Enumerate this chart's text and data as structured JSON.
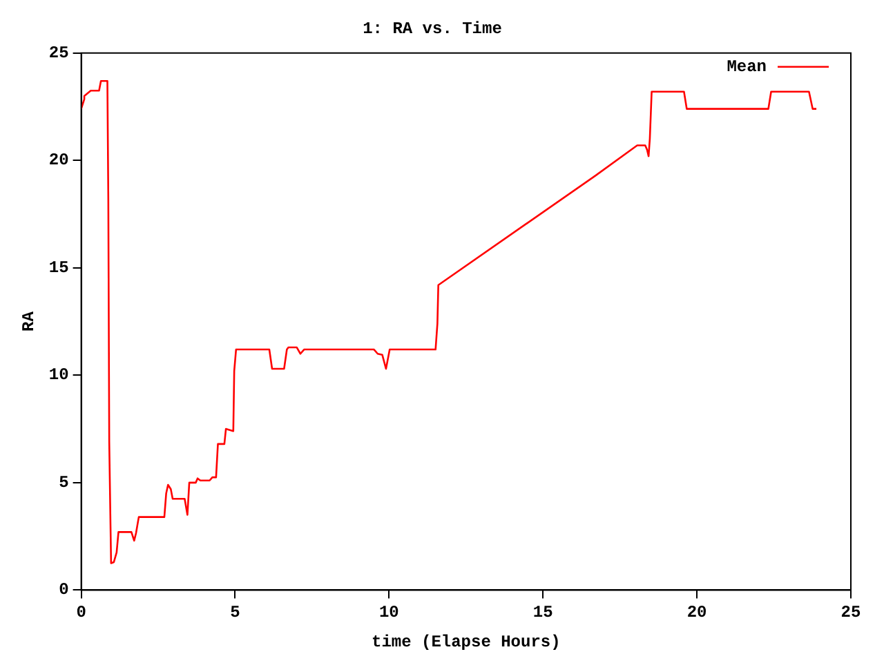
{
  "chart_data": {
    "type": "line",
    "title": "1: RA vs. Time",
    "xlabel": "time (Elapse Hours)",
    "ylabel": "RA",
    "xlim": [
      0,
      25
    ],
    "xticks": [
      0,
      5,
      10,
      15,
      20,
      25
    ],
    "ylim": [
      0,
      25
    ],
    "yticks": [
      0,
      5,
      10,
      15,
      20,
      25
    ],
    "grid": false,
    "legend": "top right",
    "marker": "none",
    "line_style": "solid",
    "series": [
      {
        "name": "Mean",
        "color": "#ff0000",
        "x": [
          0,
          0.1,
          0.1,
          0.31,
          0.58,
          0.64,
          0.85,
          0.88,
          0.91,
          0.97,
          1.06,
          1.15,
          1.21,
          1.63,
          1.72,
          1.78,
          1.87,
          2.7,
          2.76,
          2.82,
          2.91,
          2.97,
          3.36,
          3.45,
          3.51,
          3.72,
          3.78,
          3.87,
          4.17,
          4.26,
          4.38,
          4.44,
          4.65,
          4.7,
          4.94,
          4.97,
          5.03,
          6.11,
          6.2,
          6.59,
          6.68,
          6.73,
          7.0,
          7.12,
          7.24,
          9.51,
          9.63,
          9.78,
          9.9,
          10.02,
          11.51,
          11.57,
          11.6,
          16.71,
          18.06,
          18.32,
          18.38,
          18.43,
          18.47,
          18.53,
          19.58,
          19.67,
          22.32,
          22.41,
          23.64,
          23.76,
          23.88
        ],
        "values": [
          22.4,
          22.85,
          23.0,
          23.25,
          23.25,
          23.7,
          23.7,
          18.2,
          6.9,
          1.25,
          1.3,
          1.75,
          2.7,
          2.7,
          2.3,
          2.65,
          3.4,
          3.4,
          4.5,
          4.9,
          4.7,
          4.25,
          4.25,
          3.5,
          5.0,
          5.0,
          5.2,
          5.1,
          5.1,
          5.25,
          5.25,
          6.8,
          6.8,
          7.5,
          7.4,
          10.2,
          11.2,
          11.2,
          10.3,
          10.3,
          11.2,
          11.3,
          11.3,
          11.0,
          11.2,
          11.2,
          11.0,
          10.95,
          10.3,
          11.2,
          11.2,
          12.4,
          14.2,
          19.3,
          20.7,
          20.7,
          20.5,
          20.2,
          21.0,
          23.2,
          23.2,
          22.4,
          22.4,
          23.2,
          23.2,
          22.4,
          22.4
        ]
      }
    ]
  }
}
